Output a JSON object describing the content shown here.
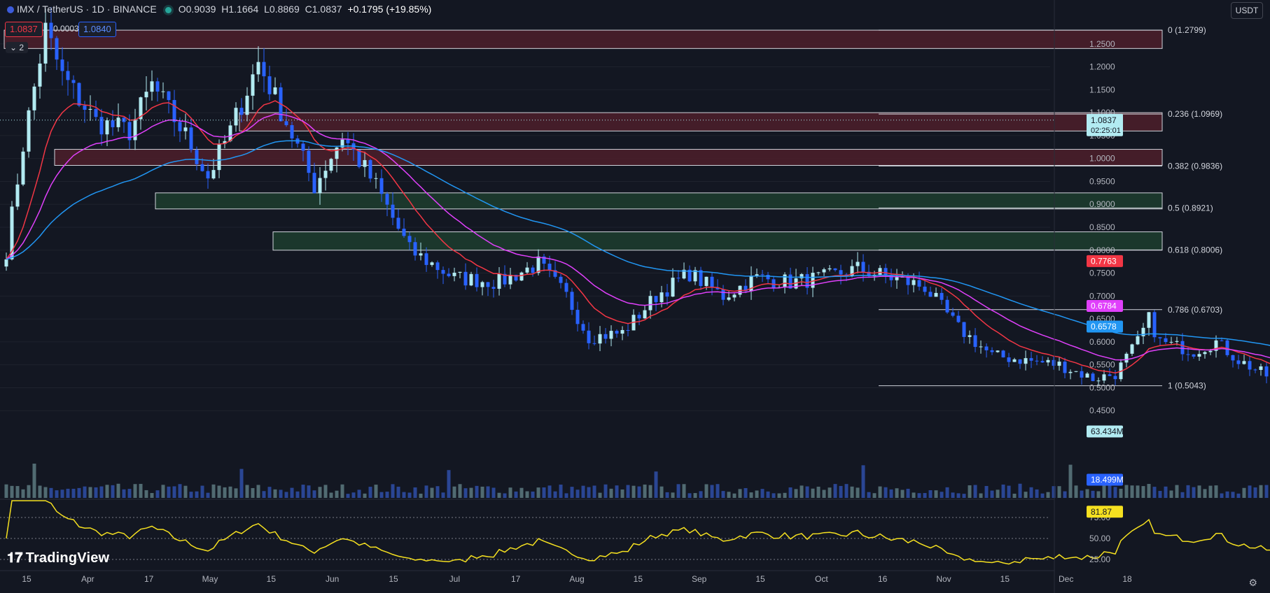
{
  "header": {
    "symbol": "IMX / TetherUS · 1D · BINANCE",
    "open": "O0.9039",
    "high": "H1.1664",
    "low": "L0.8869",
    "close": "C1.0837",
    "change": "+0.1795 (+19.85%)",
    "sell_price": "1.0837",
    "spread": "0.0003",
    "buy_price": "1.0840",
    "indicators_collapsed": "2",
    "currency": "USDT"
  },
  "branding": {
    "logo_text": "TradingView"
  },
  "colors": {
    "background": "#131722",
    "up": "#b2ebf2",
    "down": "#2962ff",
    "ema_fast": "#f23645",
    "ema_mid": "#e040fb",
    "ema_slow": "#2196f3",
    "rsi": "#f5e020",
    "resistance_zone": "#4a1e2a",
    "support_zone": "#1d3b2d"
  },
  "chart_data": {
    "type": "candlestick",
    "price_axis": {
      "ylim": [
        0.4,
        1.3
      ],
      "ticks": [
        "1.2500",
        "1.2000",
        "1.1500",
        "1.1000",
        "1.0500",
        "1.0000",
        "0.9500",
        "0.9000",
        "0.8500",
        "0.8000",
        "0.7500",
        "0.7000",
        "0.6500",
        "0.6000",
        "0.5500",
        "0.5000",
        "0.4500"
      ]
    },
    "time_axis": {
      "labels": [
        "15",
        "Apr",
        "17",
        "May",
        "15",
        "Jun",
        "15",
        "Jul",
        "17",
        "Aug",
        "15",
        "Sep",
        "15",
        "Oct",
        "16",
        "Nov",
        "15",
        "Dec",
        "18"
      ]
    },
    "ohlc_anchors": [
      {
        "t": 0,
        "c": 0.8
      },
      {
        "t": 3,
        "c": 1.03
      },
      {
        "t": 7,
        "c": 1.28
      },
      {
        "t": 10,
        "c": 1.18
      },
      {
        "t": 16,
        "c": 1.08
      },
      {
        "t": 22,
        "c": 1.06
      },
      {
        "t": 26,
        "c": 1.16
      },
      {
        "t": 32,
        "c": 1.05
      },
      {
        "t": 36,
        "c": 0.96
      },
      {
        "t": 40,
        "c": 1.06
      },
      {
        "t": 45,
        "c": 1.21
      },
      {
        "t": 50,
        "c": 1.08
      },
      {
        "t": 55,
        "c": 0.94
      },
      {
        "t": 60,
        "c": 1.05
      },
      {
        "t": 66,
        "c": 0.94
      },
      {
        "t": 72,
        "c": 0.8
      },
      {
        "t": 80,
        "c": 0.74
      },
      {
        "t": 88,
        "c": 0.73
      },
      {
        "t": 95,
        "c": 0.77
      },
      {
        "t": 100,
        "c": 0.7
      },
      {
        "t": 104,
        "c": 0.61
      },
      {
        "t": 110,
        "c": 0.62
      },
      {
        "t": 116,
        "c": 0.7
      },
      {
        "t": 122,
        "c": 0.75
      },
      {
        "t": 128,
        "c": 0.7
      },
      {
        "t": 134,
        "c": 0.74
      },
      {
        "t": 140,
        "c": 0.73
      },
      {
        "t": 146,
        "c": 0.74
      },
      {
        "t": 152,
        "c": 0.76
      },
      {
        "t": 158,
        "c": 0.74
      },
      {
        "t": 164,
        "c": 0.72
      },
      {
        "t": 170,
        "c": 0.63
      },
      {
        "t": 176,
        "c": 0.57
      },
      {
        "t": 182,
        "c": 0.56
      },
      {
        "t": 188,
        "c": 0.55
      },
      {
        "t": 194,
        "c": 0.52
      },
      {
        "t": 198,
        "c": 0.53
      },
      {
        "t": 202,
        "c": 0.6
      },
      {
        "t": 204,
        "c": 0.65
      },
      {
        "t": 206,
        "c": 0.6
      },
      {
        "t": 212,
        "c": 0.58
      },
      {
        "t": 216,
        "c": 0.6
      },
      {
        "t": 220,
        "c": 0.56
      },
      {
        "t": 226,
        "c": 0.52
      },
      {
        "t": 230,
        "c": 0.52
      },
      {
        "t": 234,
        "c": 0.57
      },
      {
        "t": 238,
        "c": 0.63
      },
      {
        "t": 242,
        "c": 0.65
      },
      {
        "t": 246,
        "c": 0.68
      },
      {
        "t": 248,
        "c": 0.8
      },
      {
        "t": 250,
        "c": 0.93
      },
      {
        "t": 252,
        "c": 0.82
      },
      {
        "t": 254,
        "c": 0.9
      },
      {
        "t": 255,
        "c": 1.0837
      }
    ],
    "ema_fast_value": 0.7763,
    "ema_mid_value": 0.6784,
    "ema_slow_value": 0.6578,
    "last_price": "1.0837",
    "countdown": "02:25:01",
    "zones": [
      {
        "kind": "resistance",
        "top": 1.28,
        "bottom": 1.24,
        "from_t": 0,
        "label": ""
      },
      {
        "kind": "resistance",
        "top": 1.1,
        "bottom": 1.06,
        "from_t": 42,
        "label": ""
      },
      {
        "kind": "resistance",
        "top": 1.02,
        "bottom": 0.985,
        "from_t": 9,
        "label": ""
      },
      {
        "kind": "support",
        "top": 0.925,
        "bottom": 0.89,
        "from_t": 27,
        "label": ""
      },
      {
        "kind": "support",
        "top": 0.84,
        "bottom": 0.8,
        "from_t": 48,
        "label": ""
      }
    ],
    "fib_levels": [
      {
        "label": "0 (1.2799)",
        "value": 1.2799
      },
      {
        "label": "0.236 (1.0969)",
        "value": 1.0969
      },
      {
        "label": "0.382 (0.9836)",
        "value": 0.9836
      },
      {
        "label": "0.5 (0.8921)",
        "value": 0.8921
      },
      {
        "label": "0.618 (0.8006)",
        "value": 0.8006
      },
      {
        "label": "0.786 (0.6703)",
        "value": 0.6703
      },
      {
        "label": "1 (0.5043)",
        "value": 0.5043
      }
    ],
    "volume": {
      "last_label": "63.434M",
      "ma_label": "18.499M",
      "ylim_millions": [
        0,
        70
      ]
    },
    "rsi": {
      "ylim": [
        15,
        95
      ],
      "ticks": [
        "75.00",
        "50.00",
        "25.00"
      ],
      "current_label": "81.87",
      "current": 81.87
    }
  }
}
